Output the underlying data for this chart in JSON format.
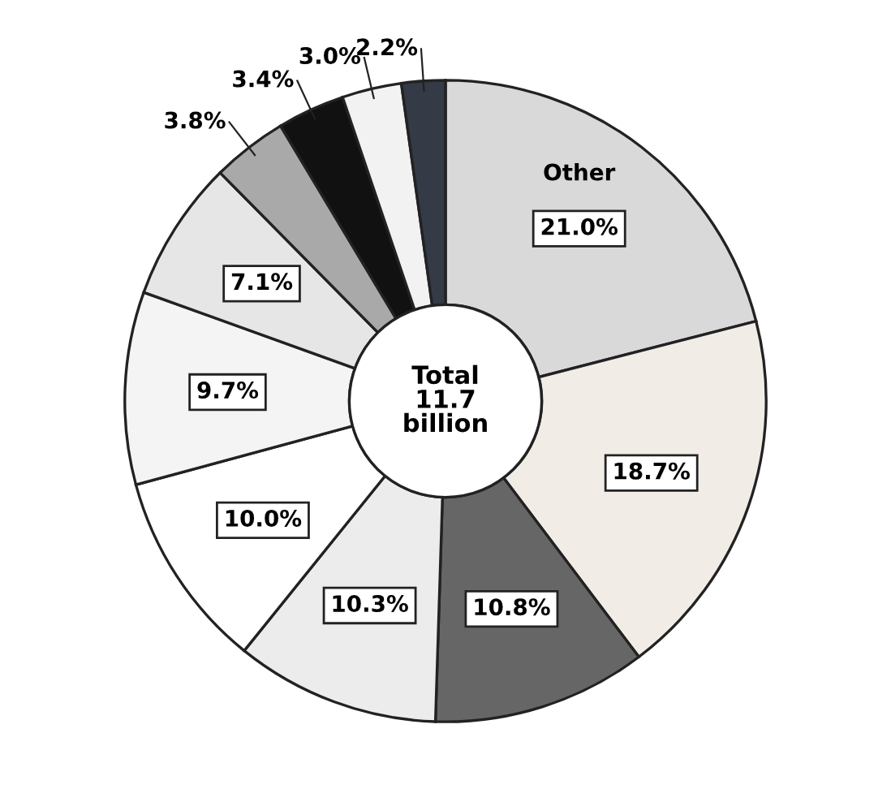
{
  "chart_data": {
    "type": "donut",
    "categories": [
      "Other",
      null,
      null,
      null,
      null,
      null,
      null,
      null,
      null,
      null,
      null
    ],
    "values": [
      21.0,
      18.7,
      10.8,
      10.3,
      10.0,
      9.7,
      7.1,
      3.8,
      3.4,
      3.0,
      2.2
    ],
    "value_labels": [
      "21.0%",
      "18.7%",
      "10.8%",
      "10.3%",
      "10.0%",
      "9.7%",
      "7.1%",
      "3.8%",
      "3.4%",
      "3.0%",
      "2.2%"
    ],
    "colors": [
      "#d9d9d9",
      "#f1ede6",
      "#666666",
      "#ececec",
      "#ffffff",
      "#f4f4f4",
      "#e6e6e6",
      "#a9a9a9",
      "#111111",
      "#f2f2f2",
      "#343a46"
    ],
    "annotations": [
      "Total\n11.7\nbillion"
    ],
    "legend": false
  }
}
